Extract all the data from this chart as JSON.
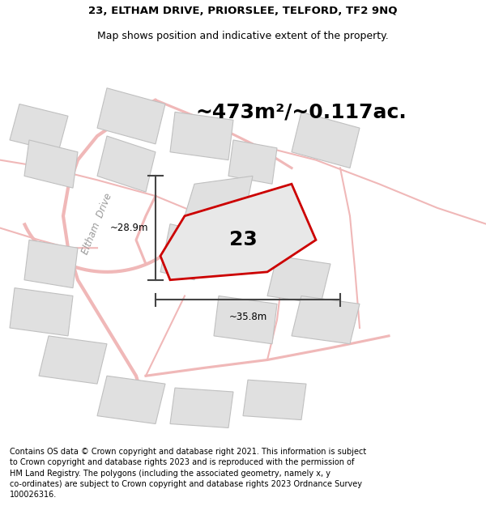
{
  "title_line1": "23, ELTHAM DRIVE, PRIORSLEE, TELFORD, TF2 9NQ",
  "title_line2": "Map shows position and indicative extent of the property.",
  "area_text": "~473m²/~0.117ac.",
  "number_label": "23",
  "dim_width": "~35.8m",
  "dim_height": "~28.9m",
  "road_label": "Eltham  Drive",
  "footer_text": "Contains OS data © Crown copyright and database right 2021. This information is subject to Crown copyright and database rights 2023 and is reproduced with the permission of HM Land Registry. The polygons (including the associated geometry, namely x, y co-ordinates) are subject to Crown copyright and database rights 2023 Ordnance Survey 100026316.",
  "bg_color": "#ffffff",
  "plot_fill_color": "#e8e8e8",
  "plot_outline_color": "#cc0000",
  "road_line_color": "#f0b8b8",
  "building_fill_color": "#e0e0e0",
  "building_outline_color": "#c0c0c0",
  "dim_line_color": "#444444",
  "title_fontsize": 9.5,
  "area_fontsize": 18,
  "number_fontsize": 18,
  "footer_fontsize": 7.0,
  "road_label_fontsize": 8.5
}
